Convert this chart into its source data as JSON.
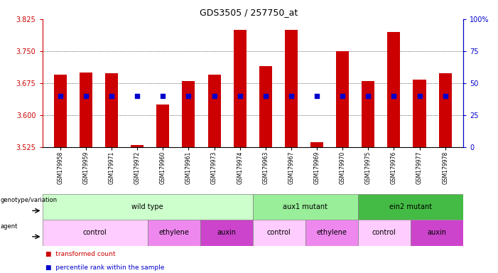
{
  "title": "GDS3505 / 257750_at",
  "samples": [
    "GSM179958",
    "GSM179959",
    "GSM179971",
    "GSM179972",
    "GSM179960",
    "GSM179961",
    "GSM179973",
    "GSM179974",
    "GSM179963",
    "GSM179967",
    "GSM179969",
    "GSM179970",
    "GSM179975",
    "GSM179976",
    "GSM179977",
    "GSM179978"
  ],
  "bar_tops": [
    3.695,
    3.7,
    3.698,
    3.53,
    3.625,
    3.68,
    3.695,
    3.8,
    3.715,
    3.8,
    3.537,
    3.75,
    3.68,
    3.795,
    3.683,
    3.698
  ],
  "percentile_values": [
    3.645,
    3.645,
    3.645,
    3.645,
    3.645,
    3.645,
    3.645,
    3.645,
    3.645,
    3.645,
    3.645,
    3.645,
    3.645,
    3.645,
    3.645,
    3.645
  ],
  "ylim_left": [
    3.525,
    3.825
  ],
  "ylim_right": [
    0,
    100
  ],
  "yticks_left": [
    3.525,
    3.6,
    3.675,
    3.75,
    3.825
  ],
  "yticks_right": [
    0,
    25,
    50,
    75,
    100
  ],
  "grid_lines": [
    3.6,
    3.675,
    3.75
  ],
  "bar_color": "#cc0000",
  "bar_base": 3.525,
  "dot_color": "#0000cc",
  "left_label_color": "#cc0000",
  "right_label_color": "#0000cc",
  "bar_width": 0.5,
  "genotype_groups": [
    {
      "label": "wild type",
      "start": 0,
      "end": 7,
      "color": "#ccffcc"
    },
    {
      "label": "aux1 mutant",
      "start": 8,
      "end": 11,
      "color": "#99ee99"
    },
    {
      "label": "ein2 mutant",
      "start": 12,
      "end": 15,
      "color": "#44bb44"
    }
  ],
  "agent_groups": [
    {
      "label": "control",
      "start": 0,
      "end": 3,
      "color": "#ffccff"
    },
    {
      "label": "ethylene",
      "start": 4,
      "end": 5,
      "color": "#ee88ee"
    },
    {
      "label": "auxin",
      "start": 6,
      "end": 7,
      "color": "#cc44cc"
    },
    {
      "label": "control",
      "start": 8,
      "end": 9,
      "color": "#ffccff"
    },
    {
      "label": "ethylene",
      "start": 10,
      "end": 11,
      "color": "#ee88ee"
    },
    {
      "label": "control",
      "start": 12,
      "end": 13,
      "color": "#ffccff"
    },
    {
      "label": "auxin",
      "start": 14,
      "end": 15,
      "color": "#cc44cc"
    }
  ]
}
